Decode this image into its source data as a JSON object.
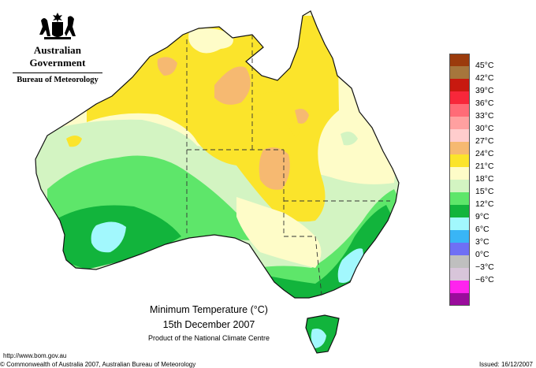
{
  "header": {
    "government": "Australian Government",
    "bureau": "Bureau of Meteorology"
  },
  "map": {
    "title": "Minimum Temperature (°C)",
    "date": "15th December 2007",
    "product": "Product of the National Climate Centre"
  },
  "legend": {
    "items": [
      {
        "label": "45°C",
        "color": "#9b3b0c"
      },
      {
        "label": "42°C",
        "color": "#a6763c"
      },
      {
        "label": "39°C",
        "color": "#c8190f"
      },
      {
        "label": "36°C",
        "color": "#f7273a"
      },
      {
        "label": "33°C",
        "color": "#ff6b77"
      },
      {
        "label": "30°C",
        "color": "#ffa0a0"
      },
      {
        "label": "27°C",
        "color": "#ffcdcd"
      },
      {
        "label": "24°C",
        "color": "#f6b971"
      },
      {
        "label": "21°C",
        "color": "#fbe42b"
      },
      {
        "label": "18°C",
        "color": "#fefcc8"
      },
      {
        "label": "15°C",
        "color": "#d3f4c2"
      },
      {
        "label": "12°C",
        "color": "#5ee66a"
      },
      {
        "label": "9°C",
        "color": "#12b43c"
      },
      {
        "label": "6°C",
        "color": "#a2f8fd"
      },
      {
        "label": "3°C",
        "color": "#39b5f6"
      },
      {
        "label": "0°C",
        "color": "#6f6ff5"
      },
      {
        "label": "−3°C",
        "color": "#bfbfbf"
      },
      {
        "label": "−6°C",
        "color": "#d8c5da"
      },
      {
        "label": "",
        "color": "#ff23ee"
      },
      {
        "label": "",
        "color": "#9a0c9c"
      }
    ]
  },
  "footer": {
    "url": "http://www.bom.gov.au",
    "copyright": "© Commonwealth of Australia 2007, Australian Bureau of Meteorology",
    "issued": "Issued: 16/12/2007"
  }
}
